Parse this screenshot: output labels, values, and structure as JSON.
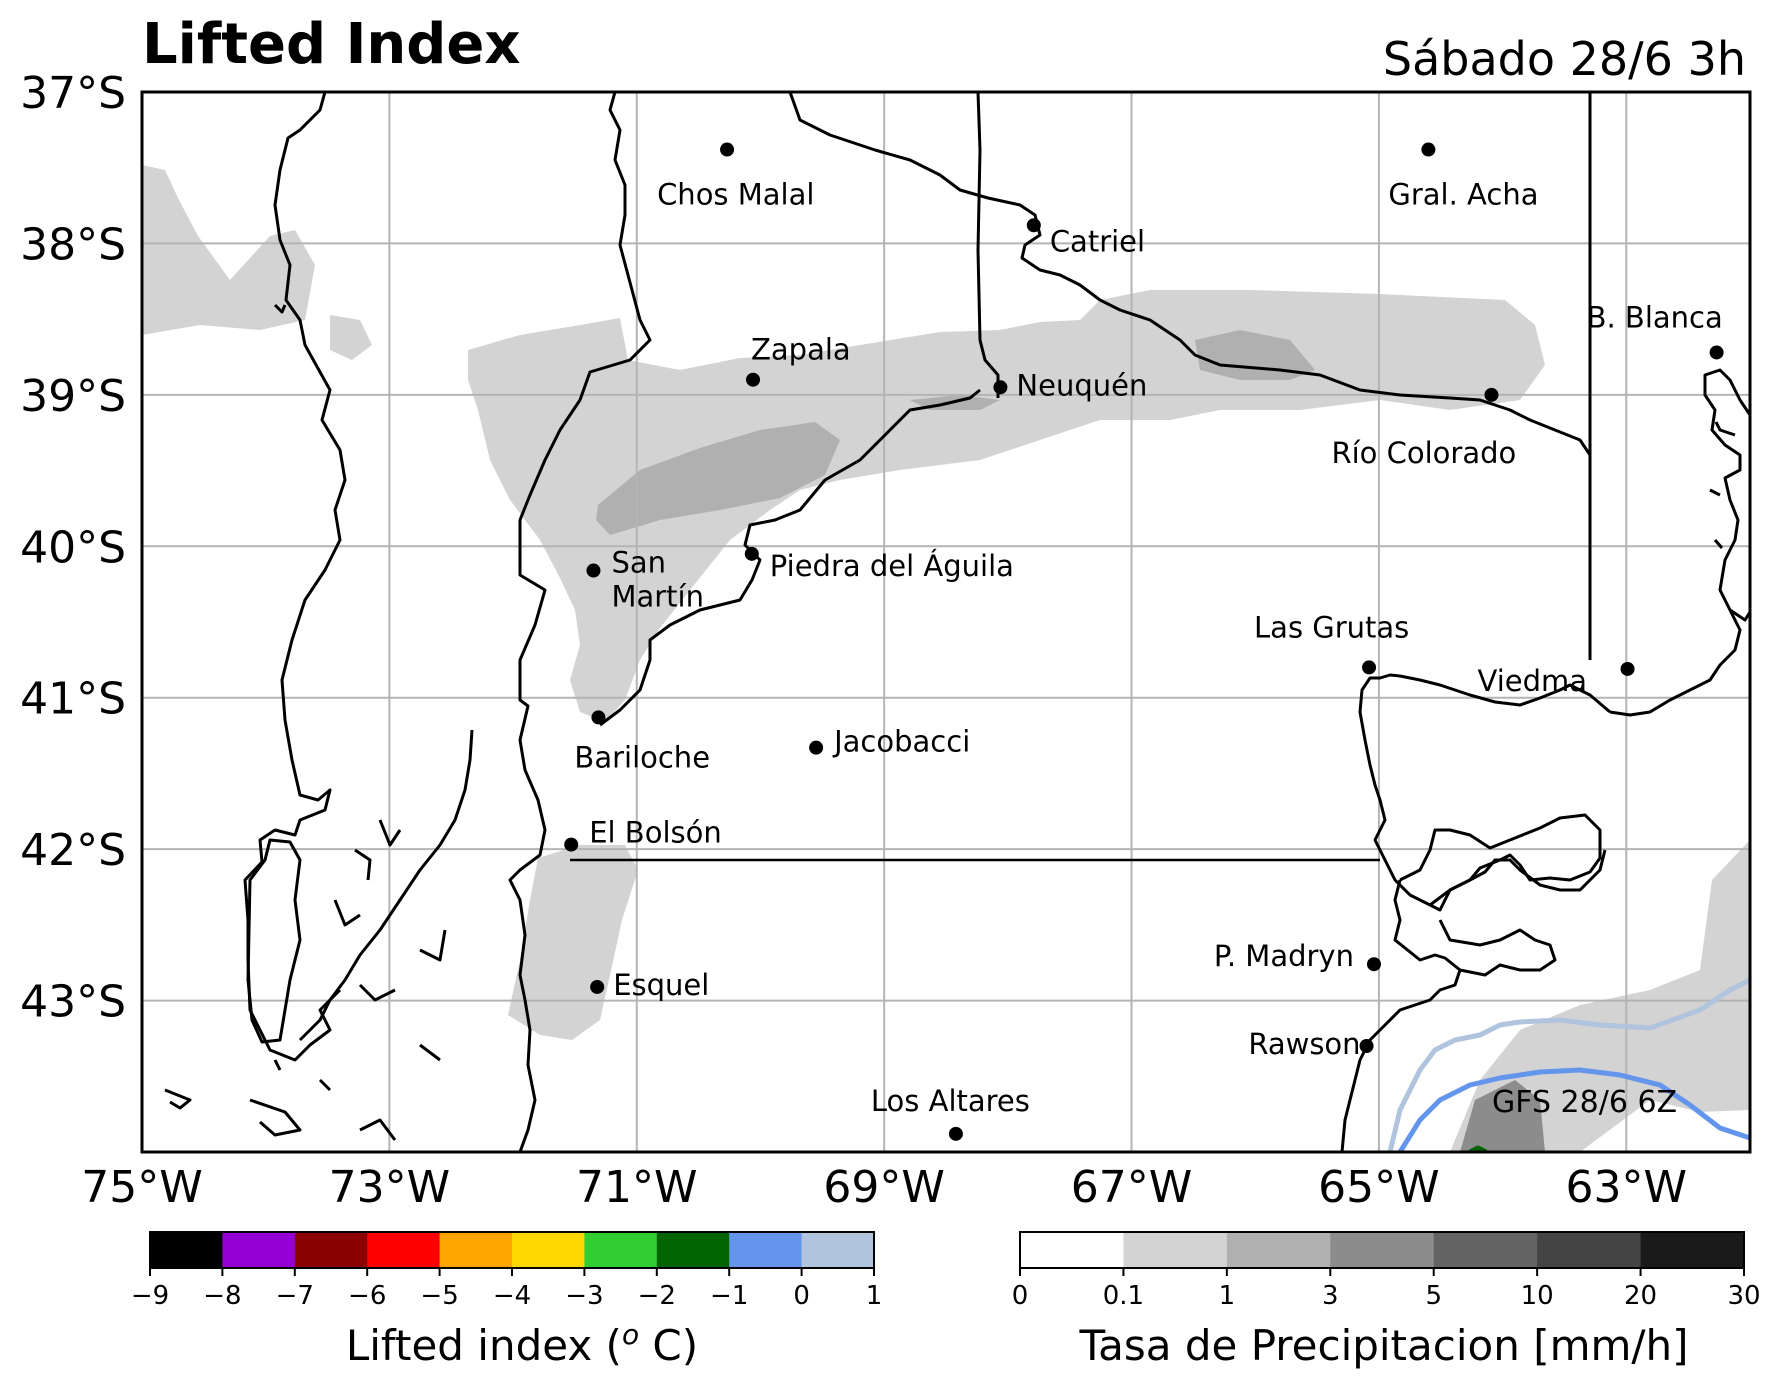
{
  "header": {
    "title": "Lifted Index",
    "datetime": "Sábado 28/6 3h"
  },
  "map": {
    "lat_range": [
      -44.0,
      -37.0
    ],
    "lon_range": [
      -75.0,
      -62.0
    ],
    "grid": true,
    "lat_ticks": [
      {
        "value": -37,
        "label": "37°S"
      },
      {
        "value": -38,
        "label": "38°S"
      },
      {
        "value": -39,
        "label": "39°S"
      },
      {
        "value": -40,
        "label": "40°S"
      },
      {
        "value": -41,
        "label": "41°S"
      },
      {
        "value": -42,
        "label": "42°S"
      },
      {
        "value": -43,
        "label": "43°S"
      }
    ],
    "lon_ticks": [
      {
        "value": -75,
        "label": "75°W"
      },
      {
        "value": -73,
        "label": "73°W"
      },
      {
        "value": -71,
        "label": "71°W"
      },
      {
        "value": -69,
        "label": "69°W"
      },
      {
        "value": -67,
        "label": "67°W"
      },
      {
        "value": -65,
        "label": "65°W"
      },
      {
        "value": -63,
        "label": "63°W"
      }
    ],
    "cities": [
      {
        "name": "Chos Malal",
        "lon": -70.27,
        "lat": -37.38
      },
      {
        "name": "Gral. Acha",
        "lon": -64.6,
        "lat": -37.38
      },
      {
        "name": "Catriel",
        "lon": -67.79,
        "lat": -37.88
      },
      {
        "name": "B. Blanca",
        "lon": -62.27,
        "lat": -38.72
      },
      {
        "name": "Zapala",
        "lon": -70.06,
        "lat": -38.9
      },
      {
        "name": "Neuquén",
        "lon": -68.06,
        "lat": -38.95
      },
      {
        "name": "Río Colorado",
        "lon": -64.09,
        "lat": -39.0
      },
      {
        "name": "San\nMartín",
        "lon": -71.35,
        "lat": -40.16
      },
      {
        "name": "Piedra del Águila",
        "lon": -70.07,
        "lat": -40.05
      },
      {
        "name": "Las Grutas",
        "lon": -65.08,
        "lat": -40.8
      },
      {
        "name": "Viedma",
        "lon": -62.99,
        "lat": -40.81
      },
      {
        "name": "Bariloche",
        "lon": -71.31,
        "lat": -41.13
      },
      {
        "name": "Jacobacci",
        "lon": -69.55,
        "lat": -41.33
      },
      {
        "name": "El Bolsón",
        "lon": -71.53,
        "lat": -41.97
      },
      {
        "name": "P. Madryn",
        "lon": -65.04,
        "lat": -42.76
      },
      {
        "name": "Esquel",
        "lon": -71.32,
        "lat": -42.91
      },
      {
        "name": "Rawson",
        "lon": -65.1,
        "lat": -43.3
      },
      {
        "name": "Los Altares",
        "lon": -68.42,
        "lat": -43.88
      }
    ],
    "annotation": "GFS 28/6 6Z"
  },
  "colorbars": {
    "lifted_index": {
      "label": "Lifted index (",
      "label_sup": "o",
      "label_end": " C)",
      "ticks": [
        "−9",
        "−8",
        "−7",
        "−6",
        "−5",
        "−4",
        "−3",
        "−2",
        "−1",
        "0",
        "1"
      ],
      "colors": [
        "#000000",
        "#9400d3",
        "#8b0000",
        "#ff0000",
        "#ffa500",
        "#ffd700",
        "#32cd32",
        "#006400",
        "#6495ed",
        "#b0c4de"
      ]
    },
    "precipitation": {
      "label": "Tasa de Precipitacion [mm/h]",
      "ticks": [
        "0",
        "0.1",
        "1",
        "3",
        "5",
        "10",
        "20",
        "30"
      ],
      "colors": [
        "#ffffff",
        "#d3d3d3",
        "#b0b0b0",
        "#8c8c8c",
        "#636363",
        "#444444",
        "#1a1a1a"
      ]
    }
  },
  "colors": {
    "precip_light": "#d3d3d3",
    "precip_medium": "#b0b0b0",
    "precip_dark": "#8c8c8c",
    "li_contour_light": "#b0c4de",
    "li_contour_blue": "#6495ed",
    "li_contour_green": "#006400"
  }
}
